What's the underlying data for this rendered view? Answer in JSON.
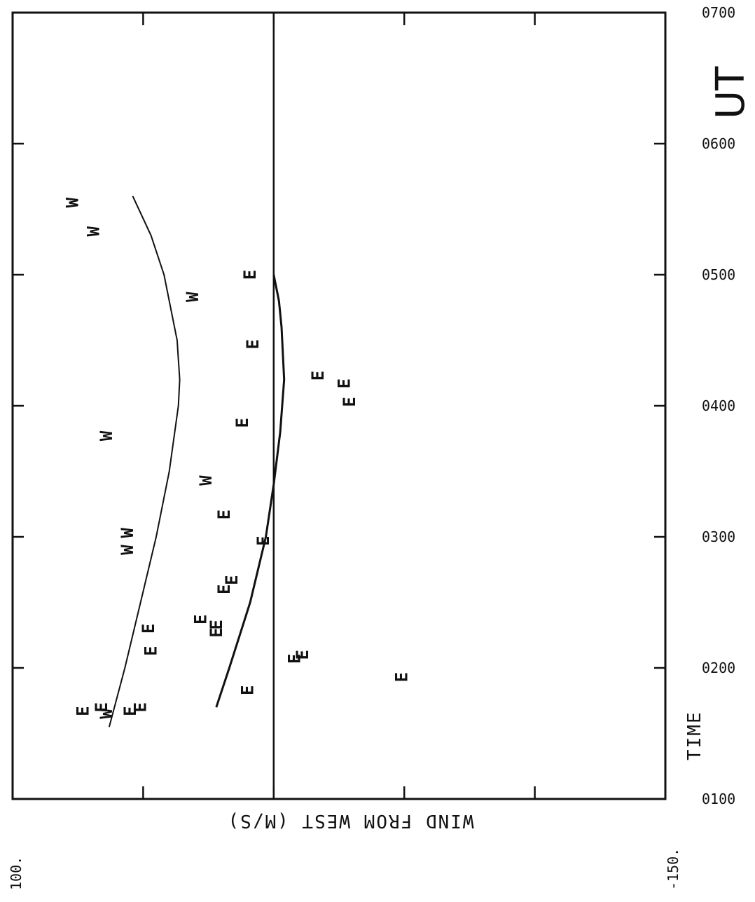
{
  "chart_data": {
    "type": "scatter",
    "title": "",
    "xlabel": "TIME",
    "xunit": "UT",
    "ylabel": "WIND FROM WEST (M/S)",
    "xlim": [
      1,
      7
    ],
    "ylim": [
      -150,
      100
    ],
    "x_tick_labels": [
      "0100",
      "0200",
      "0300",
      "0400",
      "0500",
      "0600",
      "0700"
    ],
    "x_ticks": [
      1,
      2,
      3,
      4,
      5,
      6,
      7
    ],
    "y_tick_labels": [
      "100.",
      "-150."
    ],
    "y_ticks": [
      50,
      0,
      -50,
      -100
    ],
    "zero_line": 0,
    "grid": false,
    "series": [
      {
        "name": "W",
        "marker": "W",
        "points": [
          {
            "x": 5.55,
            "y": 77
          },
          {
            "x": 5.33,
            "y": 69
          },
          {
            "x": 4.83,
            "y": 31
          },
          {
            "x": 3.77,
            "y": 64
          },
          {
            "x": 3.43,
            "y": 26
          },
          {
            "x": 3.03,
            "y": 56
          },
          {
            "x": 2.9,
            "y": 56
          },
          {
            "x": 1.65,
            "y": 64
          }
        ]
      },
      {
        "name": "E",
        "marker": "E",
        "points": [
          {
            "x": 5.0,
            "y": 9
          },
          {
            "x": 4.47,
            "y": 8
          },
          {
            "x": 4.23,
            "y": -17
          },
          {
            "x": 4.17,
            "y": -27
          },
          {
            "x": 4.03,
            "y": -29
          },
          {
            "x": 3.87,
            "y": 12
          },
          {
            "x": 3.17,
            "y": 19
          },
          {
            "x": 2.97,
            "y": 4
          },
          {
            "x": 2.67,
            "y": 16
          },
          {
            "x": 2.6,
            "y": 19
          },
          {
            "x": 2.37,
            "y": 28
          },
          {
            "x": 2.33,
            "y": 22
          },
          {
            "x": 2.27,
            "y": 22
          },
          {
            "x": 2.3,
            "y": 48
          },
          {
            "x": 2.13,
            "y": 47
          },
          {
            "x": 2.1,
            "y": -11
          },
          {
            "x": 2.07,
            "y": -8
          },
          {
            "x": 1.93,
            "y": -49
          },
          {
            "x": 1.83,
            "y": 10
          },
          {
            "x": 1.7,
            "y": 66
          },
          {
            "x": 1.67,
            "y": 73
          },
          {
            "x": 1.7,
            "y": 51
          },
          {
            "x": 1.67,
            "y": 55
          }
        ]
      }
    ],
    "curves": [
      {
        "name": "W fit",
        "points": [
          {
            "x": 1.55,
            "y": 63
          },
          {
            "x": 2.0,
            "y": 57
          },
          {
            "x": 2.5,
            "y": 51
          },
          {
            "x": 3.0,
            "y": 45
          },
          {
            "x": 3.5,
            "y": 40
          },
          {
            "x": 4.0,
            "y": 36.5
          },
          {
            "x": 4.2,
            "y": 36
          },
          {
            "x": 4.5,
            "y": 37
          },
          {
            "x": 5.0,
            "y": 42
          },
          {
            "x": 5.3,
            "y": 47
          },
          {
            "x": 5.6,
            "y": 54
          }
        ]
      },
      {
        "name": "E fit",
        "points": [
          {
            "x": 1.7,
            "y": 22
          },
          {
            "x": 2.0,
            "y": 17
          },
          {
            "x": 2.5,
            "y": 9
          },
          {
            "x": 3.0,
            "y": 3
          },
          {
            "x": 3.4,
            "y": 0
          },
          {
            "x": 3.8,
            "y": -2.5
          },
          {
            "x": 4.2,
            "y": -4
          },
          {
            "x": 4.6,
            "y": -3
          },
          {
            "x": 4.8,
            "y": -2
          },
          {
            "x": 5.0,
            "y": 0
          }
        ]
      }
    ]
  }
}
